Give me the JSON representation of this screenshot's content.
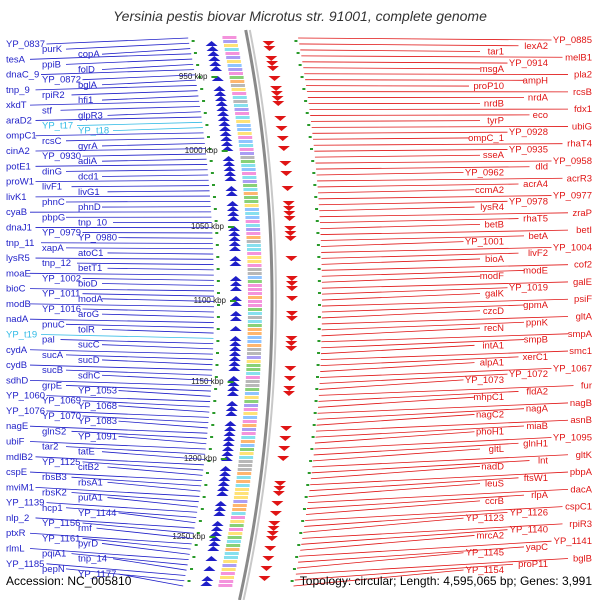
{
  "title": "Yersinia pestis biovar Microtus str. 91001, complete genome",
  "accession": "Accession: NC_005810",
  "summary": "Topology: circular; Length: 4,595,065 bp; Genes: 3,991",
  "colors": {
    "left_strand": "#1f1fc8",
    "right_strand": "#e01515",
    "trna": "#33bbe6",
    "backbone": "#8a8a8a",
    "ticks": "#2a9a2a"
  },
  "position_marks": [
    "950 kbp",
    "1000 kbp",
    "1050 kbp",
    "1100 kbp",
    "1150 kbp",
    "1200 kbp",
    "1250 kbp"
  ],
  "left_labels": [
    "YP_0837",
    "purK",
    "copA",
    "tesA",
    "ppiB",
    "folD",
    "dnaC_9",
    "YP_0872",
    "bglA",
    "tnp_9",
    "rpiR2",
    "hfi1",
    "xkdT",
    "stf",
    "glpR3",
    "araD2",
    "YP_t17",
    "YP_t18",
    "ompC1",
    "rcsC",
    "gyrA",
    "cinA2",
    "YP_0930",
    "adiA",
    "potE1",
    "dinG",
    "dcd1",
    "proW1",
    "livF1",
    "livG1",
    "livK1",
    "phnC",
    "phnD",
    "cyaB",
    "pbpG",
    "tnp_10",
    "dnaJ1",
    "YP_0979",
    "YP_0980",
    "tnp_11",
    "xapA",
    "atoC1",
    "lysR5",
    "tnp_12",
    "betT1",
    "moaE",
    "YP_1002",
    "bioD",
    "bioC",
    "YP_1011",
    "modA",
    "modB",
    "YP_1016",
    "aroG",
    "nadA",
    "pnuC",
    "tolR",
    "YP_t19",
    "pal",
    "sucC",
    "cydA",
    "sucA",
    "sucD",
    "cydB",
    "sucB",
    "sdhC",
    "sdhD",
    "grpE",
    "YP_1053",
    "YP_1060",
    "YP_1069",
    "YP_1068",
    "YP_1076",
    "YP_1070",
    "YP_1083",
    "nagE",
    "glnS2",
    "YP_1091",
    "ubiF",
    "tar2",
    "tatE",
    "mdlB2",
    "YP_1125",
    "citB2",
    "cspE",
    "rbsB3",
    "rbsA1",
    "mviM1",
    "rbsK2",
    "putA1",
    "YP_1139",
    "hcp1",
    "YP_1144",
    "nlp_2",
    "YP_1156",
    "rmf",
    "ptxR",
    "YP_1161",
    "pyrD",
    "rlmL",
    "pqiA1",
    "tnp_14",
    "YP_1185",
    "pepN",
    "YP_1177"
  ],
  "right_labels": [
    "YP_0885",
    "lexA2",
    "tar1",
    "melB1",
    "YP_0914",
    "msgA",
    "pla2",
    "ampH",
    "proP10",
    "rcsB",
    "nrdA",
    "nrdB",
    "fdx1",
    "eco",
    "tyrP",
    "ubiG",
    "YP_0928",
    "ompC_1",
    "rhaT4",
    "YP_0935",
    "sseA",
    "YP_0958",
    "dld",
    "YP_0962",
    "acrR3",
    "acrA4",
    "ccmA2",
    "YP_0977",
    "YP_0978",
    "lysR4",
    "zraP",
    "rhaT5",
    "betB",
    "betI",
    "betA",
    "YP_1001",
    "YP_1004",
    "livF2",
    "bioA",
    "cof2",
    "modE",
    "modF",
    "galE",
    "YP_1019",
    "galK",
    "psiF",
    "gpmA",
    "czcD",
    "gltA",
    "ppnK",
    "recN",
    "smpA",
    "smpB",
    "intA1",
    "smc1",
    "xerC1",
    "alpA1",
    "YP_1067",
    "YP_1072",
    "YP_1073",
    "fur",
    "fldA2",
    "mhpC1",
    "nagB",
    "nagA",
    "nagC2",
    "asnB",
    "miaB",
    "phoH1",
    "YP_1095",
    "glnH1",
    "gltL",
    "gltK",
    "lnt",
    "nadD",
    "pbpA",
    "ftsW1",
    "leuS",
    "dacA",
    "rlpA",
    "ccrB",
    "cspC1",
    "YP_1126",
    "YP_1123",
    "rpiR3",
    "YP_1140",
    "mrcA2",
    "YP_1141",
    "yapC",
    "YP_1145",
    "bglB",
    "proP11",
    "YP_1154"
  ]
}
